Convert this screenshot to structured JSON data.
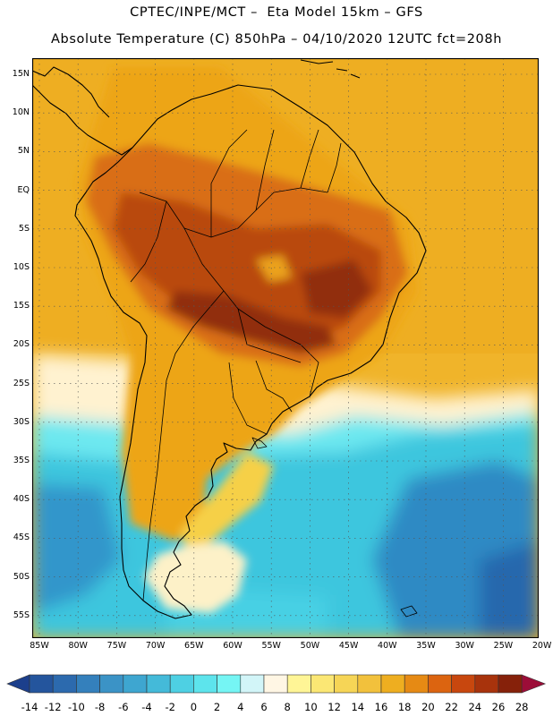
{
  "header": {
    "line1": "CPTEC/INPE/MCT –  Eta Model 15km – GFS",
    "line2": "Absolute Temperature (C) 850hPa – 04/10/2020 12UTC fct=208h"
  },
  "map": {
    "lat_labels": [
      "15N",
      "10N",
      "5N",
      "EQ",
      "5S",
      "10S",
      "15S",
      "20S",
      "25S",
      "30S",
      "35S",
      "40S",
      "45S",
      "50S",
      "55S"
    ],
    "lon_labels": [
      "85W",
      "80W",
      "75W",
      "70W",
      "65W",
      "60W",
      "55W",
      "50W",
      "45W",
      "40W",
      "35W",
      "30W",
      "25W",
      "20W"
    ],
    "colors": {
      "ocean_cold": "#2f8fc8",
      "ocean_mid": "#3dc4de",
      "cyan": "#58e2ee",
      "pale": "#fff4da",
      "yellow": "#f8d048",
      "orange": "#eda517",
      "dark_orange": "#d96c12",
      "hot": "#b84710",
      "hottest": "#8e2c0b",
      "coast": "#000000"
    }
  },
  "colorbar": {
    "labels": [
      "-14",
      "-12",
      "-10",
      "-8",
      "-6",
      "-4",
      "-2",
      "0",
      "2",
      "4",
      "6",
      "8",
      "10",
      "12",
      "14",
      "16",
      "18",
      "20",
      "22",
      "24",
      "26",
      "28"
    ],
    "colors": [
      "#1c3f8c",
      "#24559d",
      "#2c6aae",
      "#3480bc",
      "#3b93c6",
      "#3ea6d0",
      "#44bad9",
      "#4ed0e3",
      "#5de4ec",
      "#75f5f4",
      "#d2f5f8",
      "#fff6e4",
      "#fff596",
      "#fbe774",
      "#f6d556",
      "#f2c13c",
      "#eeae20",
      "#e68a14",
      "#dc6410",
      "#c8470e",
      "#a8330c",
      "#86210a",
      "#9c0d38"
    ]
  }
}
